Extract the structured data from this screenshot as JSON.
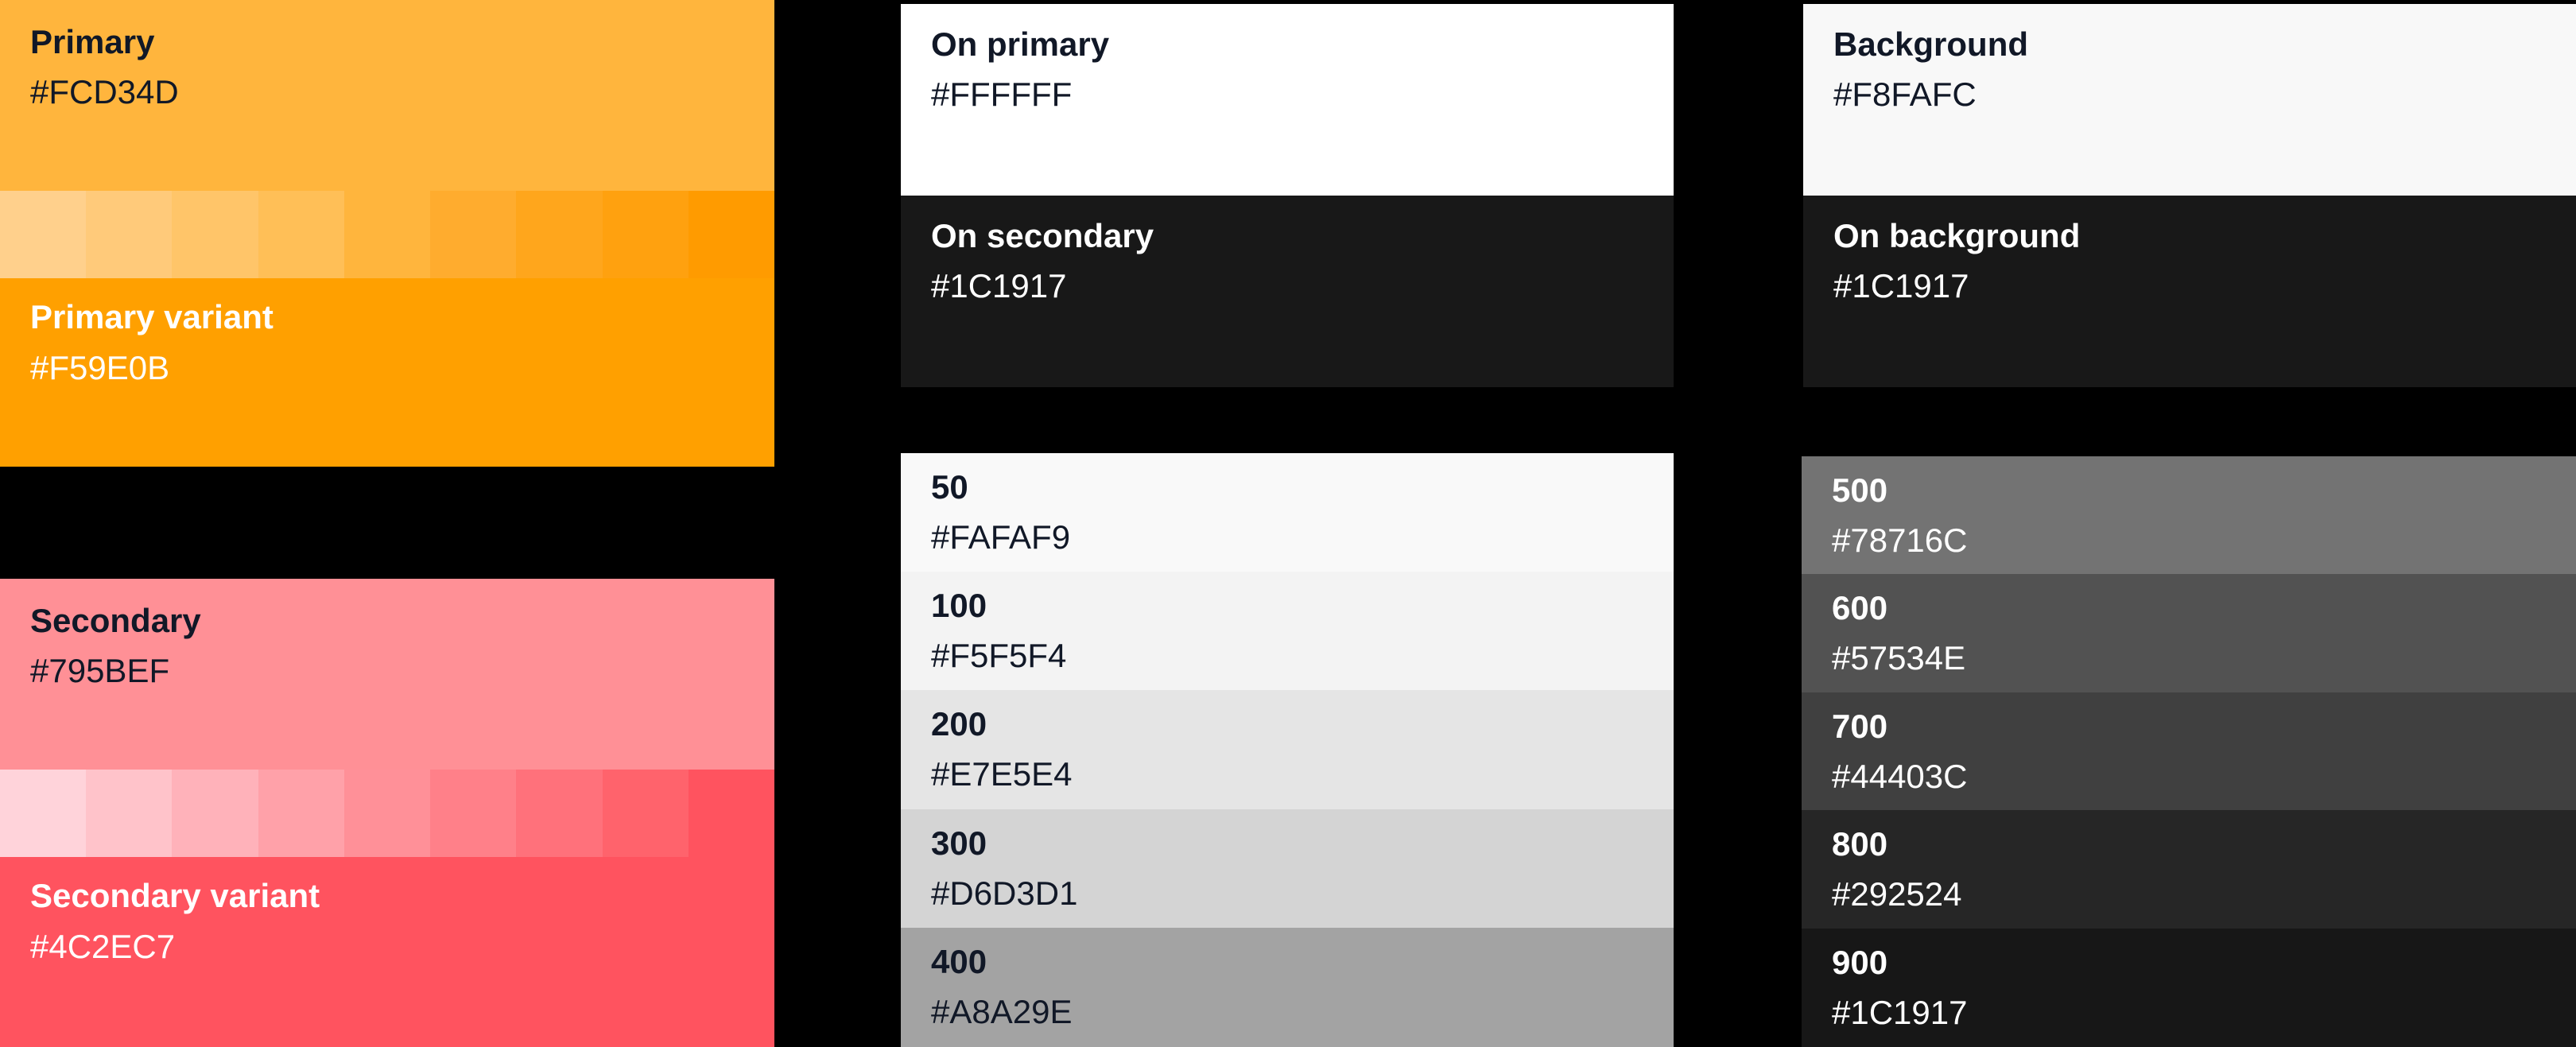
{
  "primary": {
    "name": "Primary",
    "hex": "#FCD34D",
    "color": "#FFB53D",
    "scale": [
      "#FFD08C",
      "#FFCA7A",
      "#FFC569",
      "#FFBF57",
      "#FFB53D",
      "#FFAC2E",
      "#FFA61C",
      "#FFA10F",
      "#FF9B00"
    ],
    "variant_name": "Primary variant",
    "variant_hex": "#F59E0B",
    "variant_color": "#FFA000"
  },
  "secondary": {
    "name": "Secondary",
    "hex": "#795BEF",
    "color": "#FF9096",
    "scale": [
      "#FFD3DA",
      "#FFC3CA",
      "#FFB2BA",
      "#FFA1A9",
      "#FF9098",
      "#FF8089",
      "#FF717B",
      "#FF636C",
      "#FF535F"
    ],
    "variant_name": "Secondary variant",
    "variant_hex": "#4C2EC7",
    "variant_color": "#FF535F"
  },
  "on_colors": {
    "on_primary_name": "On primary",
    "on_primary_hex": "#FFFFFF",
    "on_primary_color": "#FFFFFF",
    "on_secondary_name": "On secondary",
    "on_secondary_hex": "#1C1917",
    "on_secondary_color": "#181818"
  },
  "background_colors": {
    "background_name": "Background",
    "background_hex": "#F8FAFC",
    "background_color": "#F8F8F8",
    "on_background_name": "On background",
    "on_background_hex": "#1C1917",
    "on_background_color": "#181818"
  },
  "neutral_light": [
    {
      "name": "50",
      "hex": "#FAFAF9",
      "color": "#F9F9F9"
    },
    {
      "name": "100",
      "hex": "#F5F5F4",
      "color": "#F3F3F3"
    },
    {
      "name": "200",
      "hex": "#E7E5E4",
      "color": "#E5E5E5"
    },
    {
      "name": "300",
      "hex": "#D6D3D1",
      "color": "#D4D4D4"
    },
    {
      "name": "400",
      "hex": "#A8A29E",
      "color": "#A3A3A3"
    }
  ],
  "neutral_dark": [
    {
      "name": "500",
      "hex": "#78716C",
      "color": "#737373"
    },
    {
      "name": "600",
      "hex": "#57534E",
      "color": "#525252"
    },
    {
      "name": "700",
      "hex": "#44403C",
      "color": "#404040"
    },
    {
      "name": "800",
      "hex": "#292524",
      "color": "#262626"
    },
    {
      "name": "900",
      "hex": "#1C1917",
      "color": "#171717"
    }
  ]
}
